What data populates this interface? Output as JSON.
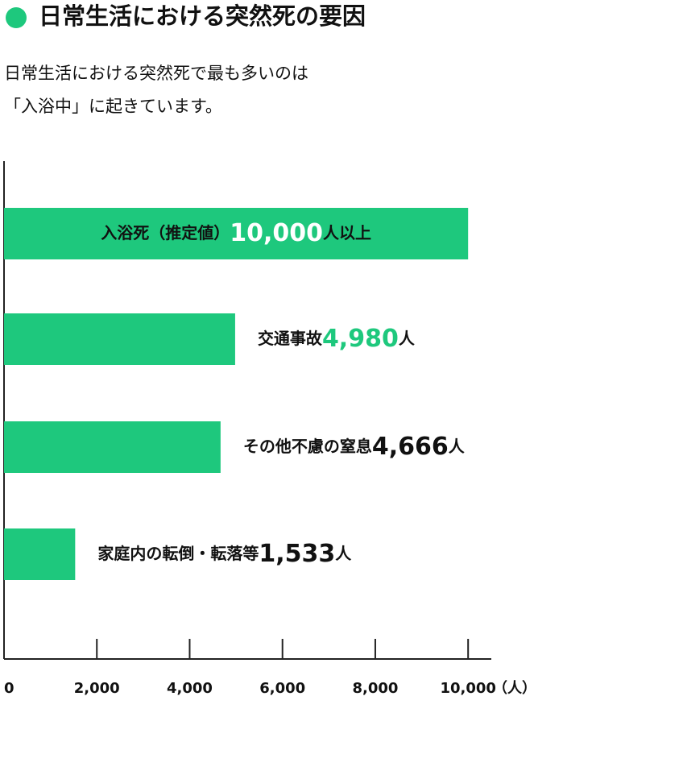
{
  "chart_data": {
    "type": "bar",
    "orientation": "horizontal",
    "title": "日常生活における突然死の要因",
    "subtitle": [
      "日常生活における突然死で最も多いのは",
      "「入浴中」に起きています。"
    ],
    "categories": [
      "入浴死（推定値）",
      "交通事故",
      "その他不慮の窒息",
      "家庭内の転倒・転落等"
    ],
    "values": [
      10000,
      4980,
      4666,
      1533
    ],
    "value_labels": [
      "10,000",
      "4,980",
      "4,666",
      "1,533"
    ],
    "value_label_colors": [
      "#ffffff",
      "#1ec87d",
      "#111111",
      "#111111"
    ],
    "unit_labels": [
      "人以上",
      "人",
      "人",
      "人"
    ],
    "color": "#1ec87d",
    "xlim": [
      0,
      10500
    ],
    "xticks": [
      0,
      {
        "value": 2000,
        "label": "2,000"
      },
      {
        "value": 4000,
        "label": "4,000"
      },
      {
        "value": 6000,
        "label": "6,000"
      },
      {
        "value": 8000,
        "label": "8,000"
      },
      {
        "value": 10000,
        "label": "10,000"
      }
    ],
    "x_axis_unit": "（人）"
  }
}
